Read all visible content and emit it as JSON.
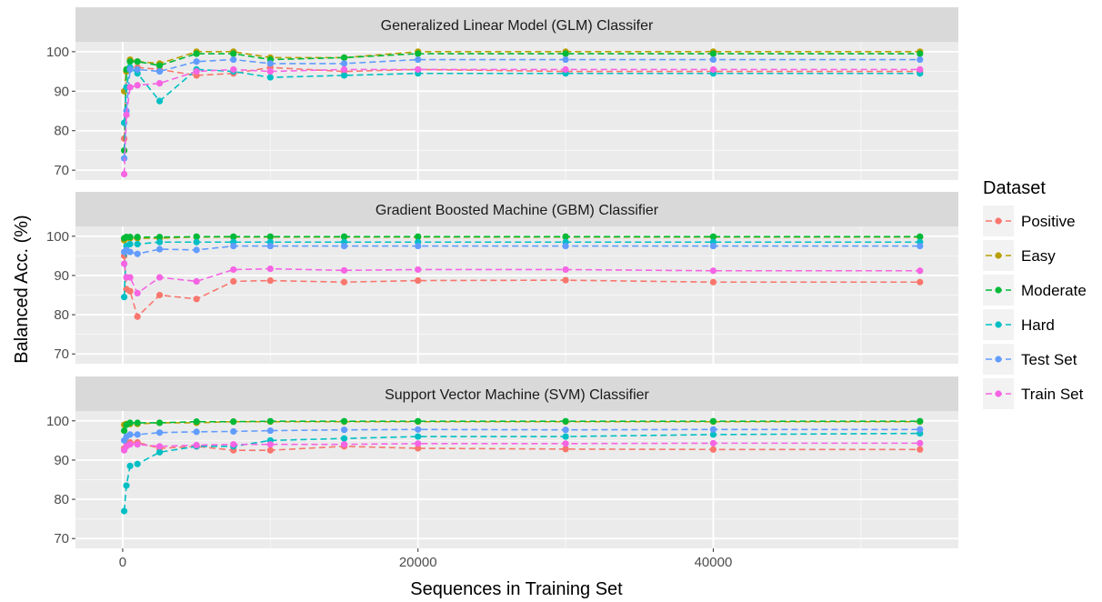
{
  "chart_data": {
    "type": "line",
    "xlabel": "Sequences in Training Set",
    "ylabel": "Balanced Acc. (%)",
    "xlim": [
      -3200,
      56600
    ],
    "ylim": [
      67.5,
      102.5
    ],
    "x_ticks": [
      0,
      20000,
      40000
    ],
    "x_tick_labels": [
      "0",
      "20000",
      "40000"
    ],
    "y_ticks": [
      70,
      80,
      90,
      100
    ],
    "y_tick_labels": [
      "70",
      "80",
      "90",
      "100"
    ],
    "grid": true,
    "line_style": "dashed",
    "legend": {
      "title": "Dataset",
      "position": "right",
      "entries": [
        "Positive",
        "Easy",
        "Moderate",
        "Hard",
        "Test Set",
        "Train Set"
      ]
    },
    "colors": {
      "Positive": "#F8766D",
      "Easy": "#B79F00",
      "Moderate": "#00BA38",
      "Hard": "#00BFC4",
      "Test Set": "#619CFF",
      "Train Set": "#F564E3"
    },
    "x": [
      100,
      250,
      500,
      1000,
      2500,
      5000,
      7500,
      10000,
      15000,
      20000,
      30000,
      40000,
      54000
    ],
    "panels": [
      {
        "title": "Generalized Linear Model (GLM) Classifer",
        "series": [
          {
            "name": "Positive",
            "values": [
              78,
              95,
              96,
              96,
              95.5,
              94,
              94.5,
              96,
              95,
              95.5,
              95,
              95,
              95
            ]
          },
          {
            "name": "Easy",
            "values": [
              90,
              95,
              98,
              97.5,
              97,
              100,
              100,
              98.5,
              98.5,
              100,
              100,
              100,
              100
            ]
          },
          {
            "name": "Moderate",
            "values": [
              75,
              95.5,
              97.5,
              97.5,
              96.5,
              99.5,
              99.5,
              98,
              98.5,
              99.5,
              99.5,
              99.5,
              99.5
            ]
          },
          {
            "name": "Hard",
            "values": [
              82,
              91,
              96,
              94.5,
              87.5,
              95.5,
              95,
              93.5,
              94,
              94.5,
              94.5,
              94.5,
              94.5
            ]
          },
          {
            "name": "Test Set",
            "values": [
              73,
              85,
              95.5,
              95.5,
              95,
              97.5,
              98,
              97,
              97,
              98,
              98,
              98,
              98
            ]
          },
          {
            "name": "Train Set",
            "values": [
              69,
              84,
              91,
              91.5,
              92,
              95,
              95.5,
              95,
              95.5,
              95.5,
              95.5,
              95.5,
              95.5
            ]
          }
        ]
      },
      {
        "title": "Gradient Boosted Machine (GBM) Classifier",
        "series": [
          {
            "name": "Positive",
            "values": [
              95,
              86.5,
              86,
              79.5,
              85,
              84,
              88.5,
              88.7,
              88.3,
              88.7,
              88.8,
              88.3,
              88.3
            ]
          },
          {
            "name": "Easy",
            "values": [
              99,
              99.5,
              99.5,
              99.5,
              99.5,
              99.8,
              99.8,
              99.8,
              99.8,
              99.8,
              99.8,
              99.8,
              99.8
            ]
          },
          {
            "name": "Moderate",
            "values": [
              99.5,
              99.8,
              99.8,
              99.8,
              99.8,
              99.9,
              99.9,
              99.9,
              99.9,
              99.9,
              99.9,
              99.9,
              99.9
            ]
          },
          {
            "name": "Hard",
            "values": [
              84.5,
              97.5,
              98,
              98,
              98.5,
              98.5,
              98.5,
              98.5,
              98.5,
              98.5,
              98.5,
              98.5,
              98.5
            ]
          },
          {
            "name": "Test Set",
            "values": [
              96,
              96.5,
              96,
              95.5,
              96.7,
              96.5,
              97.5,
              97.5,
              97.5,
              97.5,
              97.5,
              97.5,
              97.5
            ]
          },
          {
            "name": "Train Set",
            "values": [
              93,
              89.5,
              89.5,
              85.5,
              89.5,
              88.5,
              91.5,
              91.7,
              91.3,
              91.5,
              91.5,
              91.2,
              91.2
            ]
          }
        ]
      },
      {
        "title": "Support Vector Machine (SVM) Classifier",
        "series": [
          {
            "name": "Positive",
            "values": [
              93,
              94.5,
              94.5,
              94.5,
              93,
              93.5,
              92.5,
              92.5,
              93.5,
              93,
              92.8,
              92.7,
              92.7
            ]
          },
          {
            "name": "Easy",
            "values": [
              99,
              99.2,
              99.2,
              99.2,
              99.5,
              99.5,
              99.8,
              99.8,
              99.8,
              99.8,
              99.8,
              99.8,
              99.8
            ]
          },
          {
            "name": "Moderate",
            "values": [
              97.5,
              99,
              99.5,
              99.5,
              99.5,
              99.8,
              99.8,
              99.9,
              99.9,
              99.9,
              99.9,
              99.9,
              99.9
            ]
          },
          {
            "name": "Hard",
            "values": [
              77,
              83.5,
              88.5,
              89,
              92,
              93.5,
              93.5,
              95,
              95.5,
              96,
              96,
              96.5,
              96.8
            ]
          },
          {
            "name": "Test Set",
            "values": [
              95,
              96,
              96.5,
              96.5,
              97,
              97.2,
              97.3,
              97.5,
              97.7,
              97.8,
              97.7,
              97.8,
              97.8
            ]
          },
          {
            "name": "Train Set",
            "values": [
              92.5,
              93.5,
              94,
              94,
              93.5,
              93.8,
              94,
              94,
              94,
              94.2,
              94.2,
              94.3,
              94.3
            ]
          }
        ]
      }
    ]
  }
}
